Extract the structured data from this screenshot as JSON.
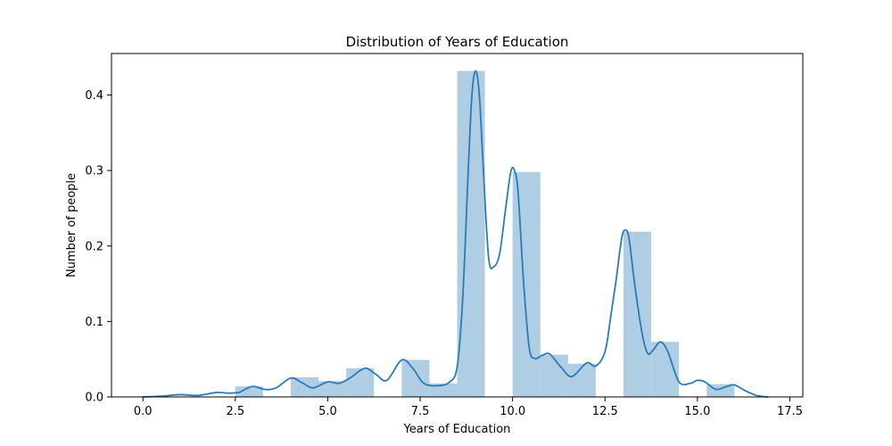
{
  "chart_data": {
    "type": "bar",
    "title": "Distribution of Years of Education",
    "xlabel": "Years of Education",
    "ylabel": "Number of people",
    "xlim": [
      -0.85,
      17.85
    ],
    "ylim": [
      0,
      0.455
    ],
    "xticks": [
      0.0,
      2.5,
      5.0,
      7.5,
      10.0,
      12.5,
      15.0,
      17.5
    ],
    "xtick_labels": [
      "0.0",
      "2.5",
      "5.0",
      "7.5",
      "10.0",
      "12.5",
      "15.0",
      "17.5"
    ],
    "yticks": [
      0.0,
      0.1,
      0.2,
      0.3,
      0.4
    ],
    "ytick_labels": [
      "0.0",
      "0.1",
      "0.2",
      "0.3",
      "0.4"
    ],
    "grid": false,
    "bar_color": "#a6c8e0",
    "line_color": "#2b7bb9",
    "histogram": {
      "bins": [
        {
          "x0": 2.5,
          "x1": 3.25,
          "value": 0.014
        },
        {
          "x0": 4.0,
          "x1": 4.75,
          "value": 0.026
        },
        {
          "x0": 4.75,
          "x1": 5.5,
          "value": 0.021
        },
        {
          "x0": 5.5,
          "x1": 6.25,
          "value": 0.038
        },
        {
          "x0": 7.0,
          "x1": 7.75,
          "value": 0.049
        },
        {
          "x0": 7.75,
          "x1": 8.5,
          "value": 0.018
        },
        {
          "x0": 8.5,
          "x1": 9.25,
          "value": 0.432
        },
        {
          "x0": 10.0,
          "x1": 10.75,
          "value": 0.298
        },
        {
          "x0": 10.75,
          "x1": 11.5,
          "value": 0.056
        },
        {
          "x0": 11.5,
          "x1": 12.25,
          "value": 0.044
        },
        {
          "x0": 13.0,
          "x1": 13.75,
          "value": 0.219
        },
        {
          "x0": 13.75,
          "x1": 14.5,
          "value": 0.073
        },
        {
          "x0": 14.5,
          "x1": 15.25,
          "value": 0.0
        },
        {
          "x0": 15.25,
          "x1": 16.0,
          "value": 0.017
        }
      ]
    },
    "kde": {
      "x": [
        0.0,
        0.5,
        1.0,
        1.5,
        2.0,
        2.3,
        2.6,
        2.8,
        3.0,
        3.3,
        3.6,
        4.0,
        4.3,
        4.6,
        5.0,
        5.3,
        5.6,
        6.0,
        6.3,
        6.6,
        7.0,
        7.3,
        7.6,
        8.0,
        8.3,
        8.5,
        8.65,
        8.8,
        8.9,
        9.0,
        9.1,
        9.2,
        9.35,
        9.5,
        9.65,
        9.8,
        9.95,
        10.05,
        10.15,
        10.3,
        10.45,
        10.6,
        10.8,
        11.0,
        11.3,
        11.6,
        12.0,
        12.25,
        12.5,
        12.65,
        12.8,
        12.95,
        13.05,
        13.15,
        13.3,
        13.5,
        13.65,
        13.8,
        14.0,
        14.2,
        14.5,
        14.8,
        15.0,
        15.2,
        15.5,
        15.8,
        16.0,
        16.3,
        16.6,
        16.9
      ],
      "y": [
        0.0,
        0.001,
        0.003,
        0.002,
        0.006,
        0.005,
        0.006,
        0.011,
        0.014,
        0.01,
        0.012,
        0.025,
        0.019,
        0.012,
        0.02,
        0.018,
        0.025,
        0.038,
        0.03,
        0.022,
        0.049,
        0.038,
        0.018,
        0.015,
        0.02,
        0.04,
        0.13,
        0.3,
        0.4,
        0.432,
        0.4,
        0.31,
        0.185,
        0.173,
        0.19,
        0.245,
        0.298,
        0.3,
        0.27,
        0.15,
        0.065,
        0.051,
        0.055,
        0.057,
        0.04,
        0.027,
        0.045,
        0.041,
        0.06,
        0.105,
        0.155,
        0.21,
        0.221,
        0.21,
        0.15,
        0.085,
        0.058,
        0.062,
        0.073,
        0.06,
        0.02,
        0.018,
        0.022,
        0.02,
        0.01,
        0.014,
        0.016,
        0.008,
        0.002,
        0.0
      ]
    }
  }
}
